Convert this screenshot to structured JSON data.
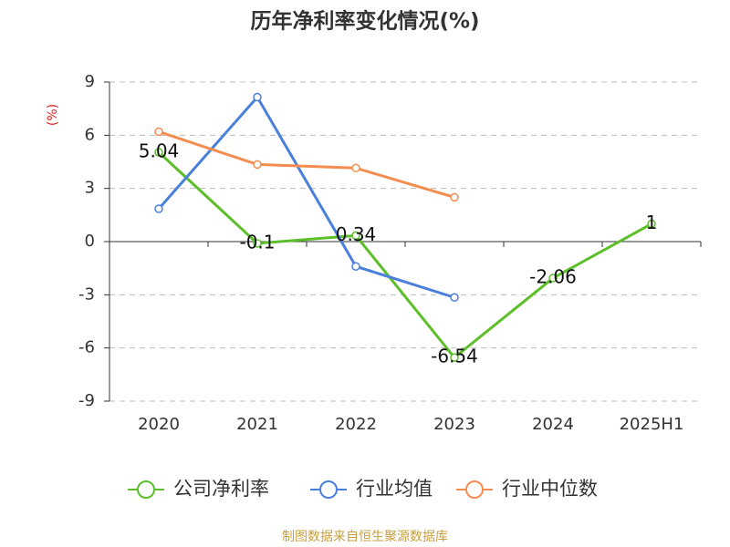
{
  "chart_data": {
    "type": "line",
    "title": "历年净利率变化情况(%)",
    "y_label": "(%)",
    "source": "制图数据来自恒生聚源数据库",
    "categories": [
      "2020",
      "2021",
      "2022",
      "2023",
      "2024",
      "2025H1"
    ],
    "series": [
      {
        "name": "公司净利率",
        "color": "#5cbf2a",
        "values": [
          5.04,
          -0.1,
          0.34,
          -6.54,
          -2.06,
          1
        ],
        "show_labels": true
      },
      {
        "name": "行业均值",
        "color": "#4a7fdc",
        "values": [
          1.85,
          8.15,
          -1.4,
          -3.15,
          null,
          null
        ]
      },
      {
        "name": "行业中位数",
        "color": "#f58c50",
        "values": [
          6.2,
          4.35,
          4.15,
          2.5,
          null,
          null
        ]
      }
    ],
    "ylim": [
      -9,
      9
    ],
    "yticks": [
      -9,
      -6,
      -3,
      0,
      3,
      6,
      9
    ],
    "grid": true
  }
}
